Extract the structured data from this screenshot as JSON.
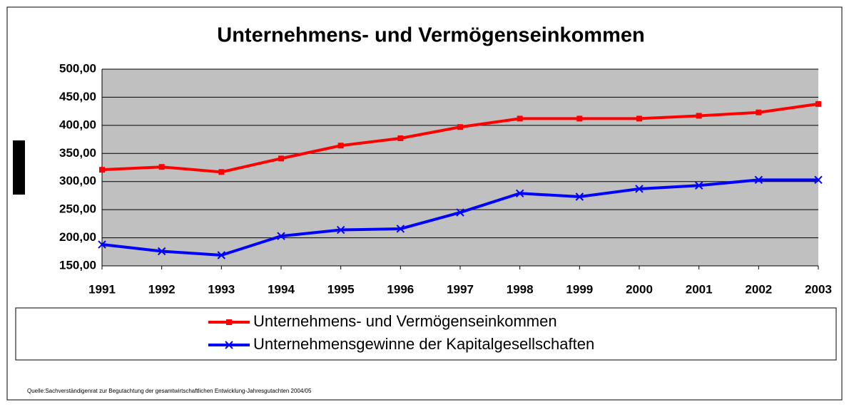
{
  "chart_data": {
    "type": "line",
    "title": "Unternehmens- und Vermögenseinkommen",
    "categories": [
      "1991",
      "1992",
      "1993",
      "1994",
      "1995",
      "1996",
      "1997",
      "1998",
      "1999",
      "2000",
      "2001",
      "2002",
      "2003"
    ],
    "series": [
      {
        "name": "Unternehmens- und Vermögenseinkommen",
        "color": "#ff0000",
        "marker": "square",
        "values": [
          321,
          326,
          317,
          341,
          364,
          377,
          397,
          412,
          412,
          412,
          417,
          423,
          438
        ]
      },
      {
        "name": "Unternehmensgewinne der Kapitalgesellschaften",
        "color": "#0000ff",
        "marker": "x",
        "values": [
          188,
          176,
          169,
          203,
          214,
          216,
          245,
          279,
          273,
          287,
          293,
          303,
          303
        ]
      }
    ],
    "ylim": [
      150,
      500
    ],
    "yticks": [
      {
        "value": 150,
        "label": "150,00"
      },
      {
        "value": 200,
        "label": "200,00"
      },
      {
        "value": 250,
        "label": "250,00"
      },
      {
        "value": 300,
        "label": "300,00"
      },
      {
        "value": 350,
        "label": "350,00"
      },
      {
        "value": 400,
        "label": "400,00"
      },
      {
        "value": 450,
        "label": "450,00"
      },
      {
        "value": 500,
        "label": "500,00"
      }
    ],
    "grid": true,
    "source": "Quelle:Sachverständigenrat zur Begutachtung der gesamtwirtschaftlichen Entwicklung-Jahresgutachten 2004/05"
  }
}
